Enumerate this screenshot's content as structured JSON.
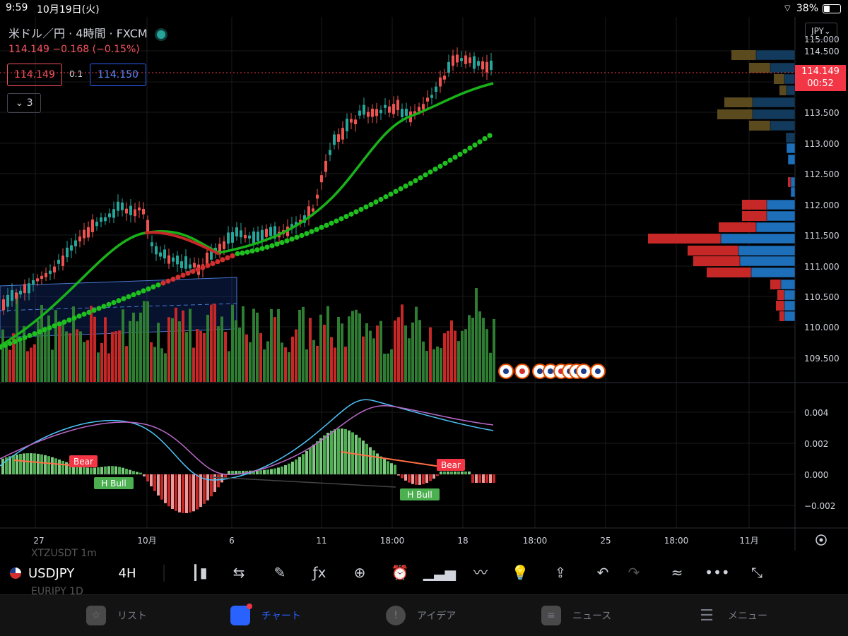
{
  "status": {
    "time": "9:59",
    "date": "10月19日(火)",
    "battery": "38%"
  },
  "legend": {
    "title": "米ドル／円 · 4時間 · FXCM",
    "price_line": "114.149  −0.168 (−0.15%)",
    "bid": "114.149",
    "spread": "0.1",
    "ask": "114.150",
    "indicator_count": "3"
  },
  "price_axis": {
    "currency": "JPY",
    "labels": [
      "115.000",
      "114.500",
      "113.500",
      "113.000",
      "112.500",
      "112.000",
      "111.500",
      "111.000",
      "110.500",
      "110.000",
      "109.500"
    ],
    "current_price": "114.149",
    "countdown": "00:52"
  },
  "oscillator_axis": {
    "labels": [
      "0.004",
      "0.002",
      "0.000",
      "−0.002"
    ]
  },
  "oscillator_labels": {
    "bear1": "Bear",
    "hbull1": "H Bull",
    "bear2": "Bear",
    "hbull2": "H Bull"
  },
  "time_axis": {
    "labels": [
      "27",
      "10月",
      "6",
      "11",
      "18:00",
      "18",
      "18:00",
      "25",
      "18:00",
      "11月"
    ]
  },
  "toolbar": {
    "symbol": "USDJPY",
    "interval": "4H",
    "ghost_symbol_1": "XTZUSDT  1m",
    "ghost_symbol_2": "EURJPY  1D",
    "icons": [
      "candles-icon",
      "replay-icon",
      "draw-icon",
      "indicators-icon",
      "add-icon",
      "alert-icon",
      "bars-icon",
      "compare-icon",
      "idea-icon",
      "share-icon",
      "undo-icon",
      "redo-icon",
      "trend-icon",
      "more-icon",
      "fullscreen-icon"
    ]
  },
  "tabs": {
    "list": "リスト",
    "chart": "チャート",
    "ideas": "アイデア",
    "news": "ニュース",
    "menu": "メニュー"
  },
  "colors": {
    "up": "#26a69a",
    "down": "#ef5350",
    "accent": "#2962ff",
    "ma_green": "#22c922"
  }
}
